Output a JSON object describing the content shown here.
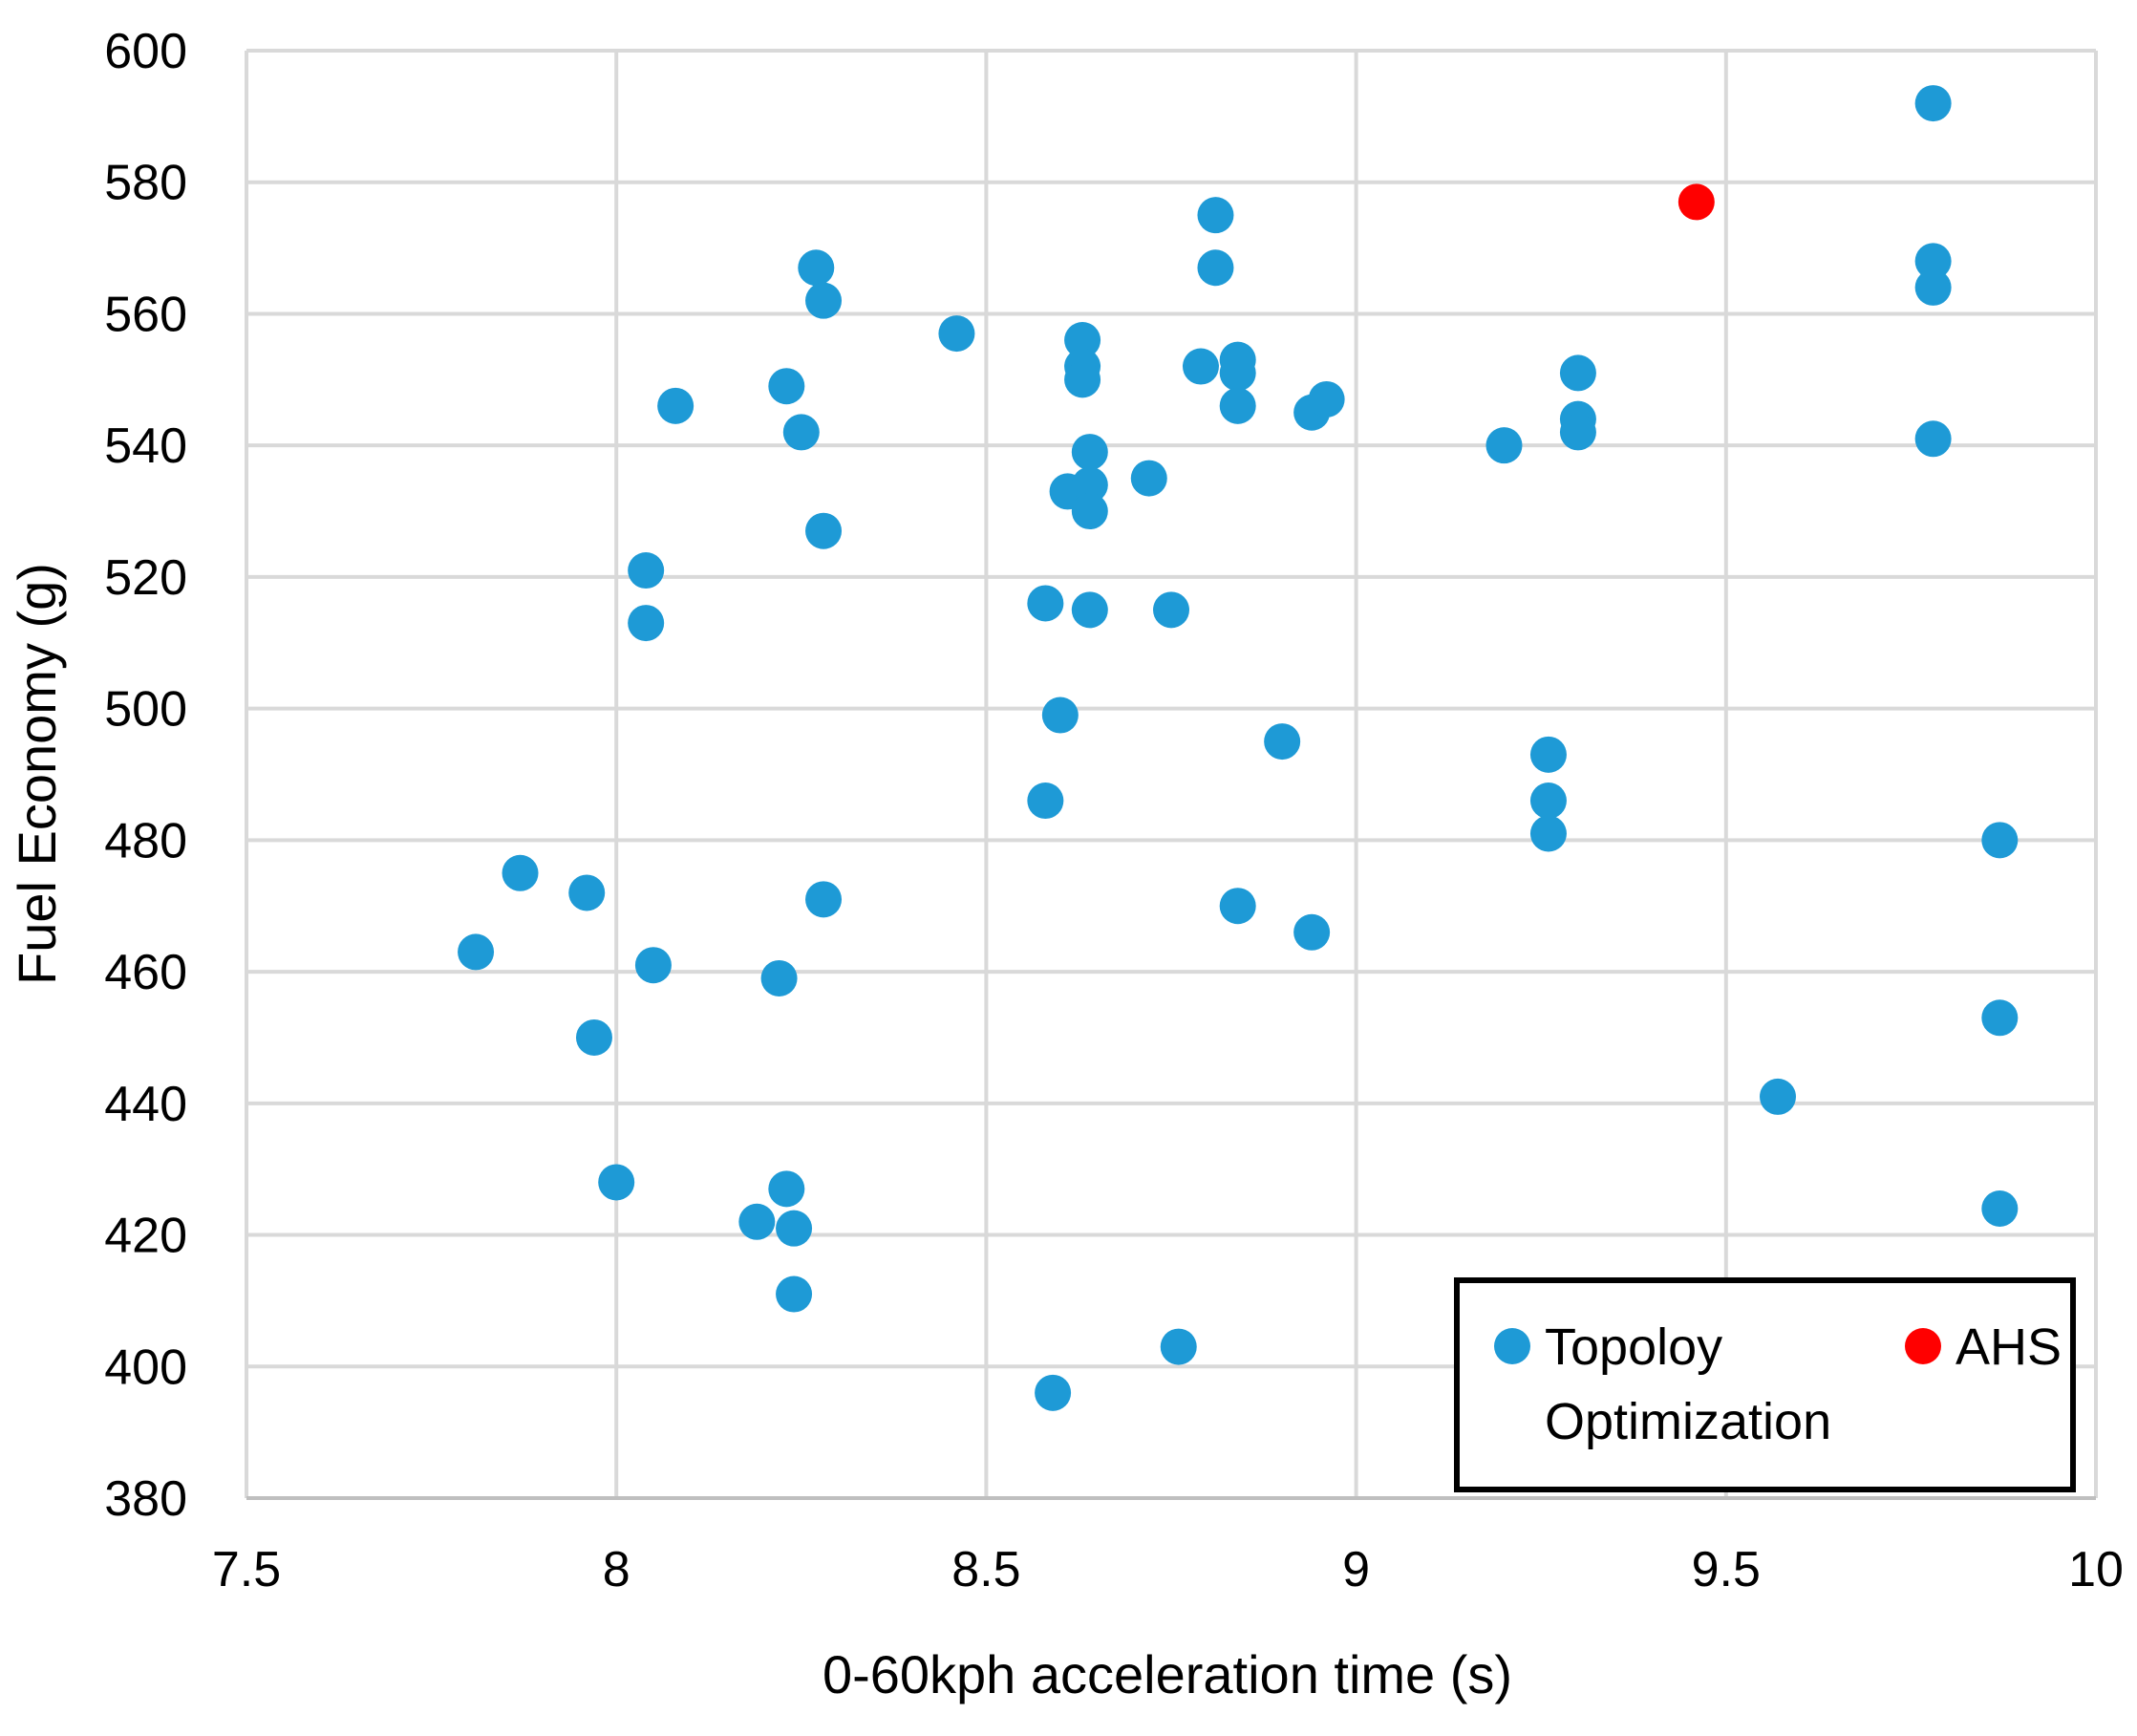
{
  "chart_data": {
    "type": "scatter",
    "title": "",
    "xlabel": "0-60kph acceleration time (s)",
    "ylabel": "Fuel Economy (g)",
    "xlim": [
      7.5,
      10
    ],
    "ylim": [
      380,
      600
    ],
    "xticks": [
      7.5,
      8,
      8.5,
      9,
      9.5,
      10
    ],
    "xtick_labels": [
      "7.5",
      "8",
      "8.5",
      "9",
      "9.5",
      "10"
    ],
    "yticks": [
      380,
      400,
      420,
      440,
      460,
      480,
      500,
      520,
      540,
      560,
      580,
      600
    ],
    "ytick_labels": [
      "380",
      "400",
      "420",
      "440",
      "460",
      "480",
      "500",
      "520",
      "540",
      "560",
      "580",
      "600"
    ],
    "grid": true,
    "legend_position": "bottom-right",
    "series": [
      {
        "name": "Topoloy Optimization",
        "legend_lines": [
          "Topoloy",
          "Optimization"
        ],
        "color": "#1e9ad6",
        "points": [
          [
            7.81,
            463
          ],
          [
            7.87,
            475
          ],
          [
            7.96,
            472
          ],
          [
            7.97,
            450
          ],
          [
            8.0,
            428
          ],
          [
            8.04,
            521
          ],
          [
            8.04,
            513
          ],
          [
            8.05,
            461
          ],
          [
            8.08,
            546
          ],
          [
            8.19,
            422
          ],
          [
            8.22,
            459
          ],
          [
            8.23,
            549
          ],
          [
            8.23,
            427
          ],
          [
            8.24,
            421
          ],
          [
            8.24,
            411
          ],
          [
            8.25,
            542
          ],
          [
            8.27,
            567
          ],
          [
            8.28,
            562
          ],
          [
            8.28,
            527
          ],
          [
            8.28,
            471
          ],
          [
            8.46,
            557
          ],
          [
            8.58,
            516
          ],
          [
            8.58,
            486
          ],
          [
            8.59,
            396
          ],
          [
            8.6,
            499
          ],
          [
            8.61,
            533
          ],
          [
            8.63,
            556
          ],
          [
            8.63,
            552
          ],
          [
            8.63,
            550
          ],
          [
            8.64,
            539
          ],
          [
            8.64,
            534
          ],
          [
            8.64,
            530
          ],
          [
            8.64,
            515
          ],
          [
            8.72,
            535
          ],
          [
            8.75,
            515
          ],
          [
            8.76,
            403
          ],
          [
            8.79,
            552
          ],
          [
            8.81,
            575
          ],
          [
            8.81,
            567
          ],
          [
            8.84,
            553
          ],
          [
            8.84,
            551
          ],
          [
            8.84,
            546
          ],
          [
            8.84,
            470
          ],
          [
            8.9,
            495
          ],
          [
            8.94,
            545
          ],
          [
            8.94,
            466
          ],
          [
            8.96,
            547
          ],
          [
            9.2,
            540
          ],
          [
            9.26,
            493
          ],
          [
            9.26,
            486
          ],
          [
            9.26,
            481
          ],
          [
            9.3,
            551
          ],
          [
            9.3,
            544
          ],
          [
            9.3,
            542
          ],
          [
            9.57,
            441
          ],
          [
            9.78,
            592
          ],
          [
            9.78,
            568
          ],
          [
            9.78,
            564
          ],
          [
            9.78,
            541
          ],
          [
            9.87,
            480
          ],
          [
            9.87,
            453
          ],
          [
            9.87,
            424
          ]
        ]
      },
      {
        "name": "AHS",
        "legend_lines": [
          "AHS"
        ],
        "color": "#ff0000",
        "points": [
          [
            9.46,
            577
          ]
        ]
      }
    ]
  }
}
